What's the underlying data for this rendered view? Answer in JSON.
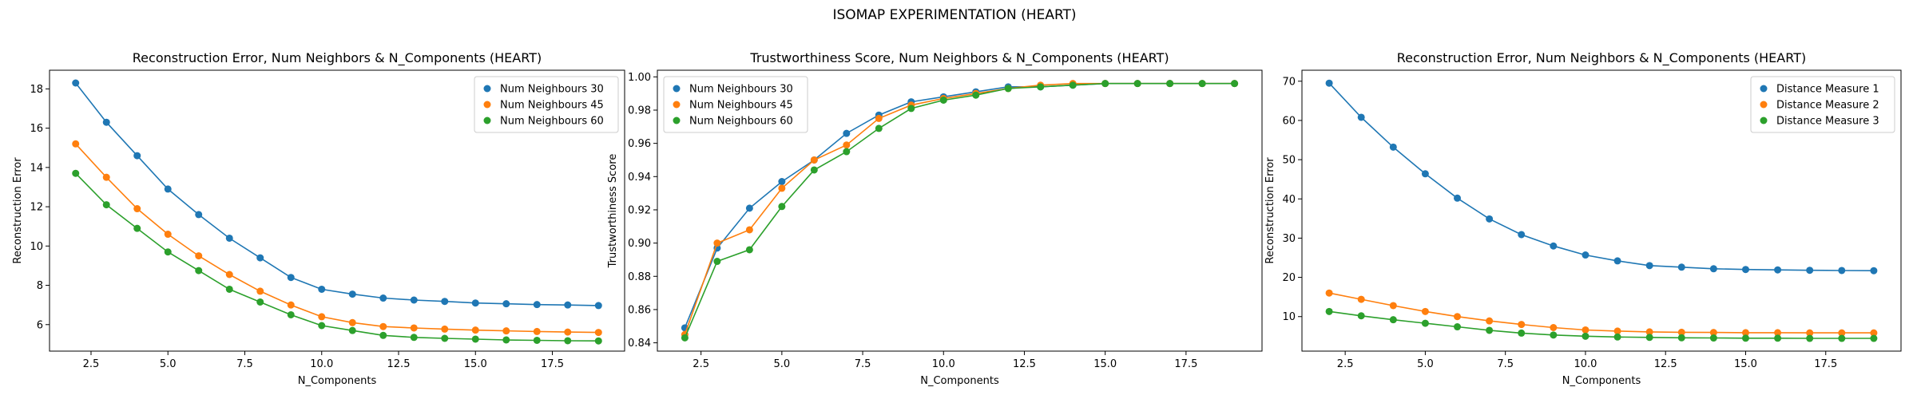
{
  "suptitle": "ISOMAP EXPERIMENTATION (HEART)",
  "colors": {
    "series_1": "#1f77b4",
    "series_2": "#ff7f0e",
    "series_3": "#2ca02c"
  },
  "chart_data": [
    {
      "type": "line",
      "title": "Reconstruction Error, Num Neighbors & N_Components (HEART)",
      "xlabel": "N_Components",
      "ylabel": "Reconstruction Error",
      "x": [
        2,
        3,
        4,
        5,
        6,
        7,
        8,
        9,
        10,
        11,
        12,
        13,
        14,
        15,
        16,
        17,
        18,
        19
      ],
      "xlim": [
        1.15,
        19.85
      ],
      "ylim": [
        4.65,
        18.95
      ],
      "xticks": [
        "2.5",
        "5.0",
        "7.5",
        "10.0",
        "12.5",
        "15.0",
        "17.5"
      ],
      "yticks": [
        "6",
        "8",
        "10",
        "12",
        "14",
        "16",
        "18"
      ],
      "grid": false,
      "legend_position": "upper right",
      "series": [
        {
          "name": "Num Neighbours 30",
          "values": [
            18.3,
            16.3,
            14.6,
            12.9,
            11.6,
            10.4,
            9.4,
            8.4,
            7.8,
            7.55,
            7.35,
            7.25,
            7.18,
            7.1,
            7.06,
            7.02,
            7.0,
            6.97
          ]
        },
        {
          "name": "Num Neighbours 45",
          "values": [
            15.2,
            13.5,
            11.9,
            10.6,
            9.5,
            8.55,
            7.7,
            7.0,
            6.4,
            6.1,
            5.9,
            5.83,
            5.77,
            5.72,
            5.68,
            5.65,
            5.62,
            5.6
          ]
        },
        {
          "name": "Num Neighbours 60",
          "values": [
            13.7,
            12.1,
            10.9,
            9.7,
            8.75,
            7.8,
            7.15,
            6.5,
            5.95,
            5.7,
            5.45,
            5.35,
            5.3,
            5.26,
            5.22,
            5.2,
            5.18,
            5.17
          ]
        }
      ]
    },
    {
      "type": "line",
      "title": "Trustworthiness Score, Num Neighbors & N_Components (HEART)",
      "xlabel": "N_Components",
      "ylabel": "Trustworthiness Score",
      "x": [
        2,
        3,
        4,
        5,
        6,
        7,
        8,
        9,
        10,
        11,
        12,
        13,
        14,
        15,
        16,
        17,
        18,
        19
      ],
      "xlim": [
        1.15,
        19.85
      ],
      "ylim": [
        0.835,
        1.004
      ],
      "xticks": [
        "2.5",
        "5.0",
        "7.5",
        "10.0",
        "12.5",
        "15.0",
        "17.5"
      ],
      "yticks": [
        "0.84",
        "0.86",
        "0.88",
        "0.90",
        "0.92",
        "0.94",
        "0.96",
        "0.98",
        "1.00"
      ],
      "grid": false,
      "legend_position": "upper left",
      "series": [
        {
          "name": "Num Neighbours 30",
          "values": [
            0.849,
            0.897,
            0.921,
            0.937,
            0.95,
            0.966,
            0.977,
            0.985,
            0.988,
            0.991,
            0.994,
            0.994,
            0.995,
            0.996,
            0.996,
            0.996,
            0.996,
            0.996
          ]
        },
        {
          "name": "Num Neighbours 45",
          "values": [
            0.845,
            0.9,
            0.908,
            0.933,
            0.95,
            0.959,
            0.975,
            0.983,
            0.987,
            0.99,
            0.993,
            0.995,
            0.996,
            0.996,
            0.996,
            0.996,
            0.996,
            0.996
          ]
        },
        {
          "name": "Num Neighbours 60",
          "values": [
            0.843,
            0.889,
            0.896,
            0.922,
            0.944,
            0.955,
            0.969,
            0.981,
            0.986,
            0.989,
            0.993,
            0.994,
            0.995,
            0.996,
            0.996,
            0.996,
            0.996,
            0.996
          ]
        }
      ]
    },
    {
      "type": "line",
      "title": "Reconstruction Error, Num Neighbors & N_Components (HEART)",
      "xlabel": "N_Components",
      "ylabel": "Reconstruction Error",
      "x": [
        2,
        3,
        4,
        5,
        6,
        7,
        8,
        9,
        10,
        11,
        12,
        13,
        14,
        15,
        16,
        17,
        18,
        19
      ],
      "xlim": [
        1.15,
        19.85
      ],
      "ylim": [
        1.2,
        72.8
      ],
      "xticks": [
        "2.5",
        "5.0",
        "7.5",
        "10.0",
        "12.5",
        "15.0",
        "17.5"
      ],
      "yticks": [
        "10",
        "20",
        "30",
        "40",
        "50",
        "60",
        "70"
      ],
      "grid": false,
      "legend_position": "upper right",
      "series": [
        {
          "name": "Distance Measure 1",
          "values": [
            69.5,
            60.8,
            53.2,
            46.4,
            40.2,
            34.9,
            30.9,
            28.0,
            25.7,
            24.2,
            23.0,
            22.6,
            22.2,
            22.0,
            21.9,
            21.8,
            21.75,
            21.7
          ]
        },
        {
          "name": "Distance Measure 2",
          "values": [
            16.0,
            14.4,
            12.8,
            11.3,
            10.0,
            8.9,
            8.0,
            7.2,
            6.6,
            6.3,
            6.1,
            6.0,
            5.95,
            5.9,
            5.9,
            5.85,
            5.85,
            5.85
          ]
        },
        {
          "name": "Distance Measure 3",
          "values": [
            11.3,
            10.2,
            9.2,
            8.3,
            7.4,
            6.5,
            5.8,
            5.3,
            5.0,
            4.8,
            4.7,
            4.6,
            4.55,
            4.5,
            4.5,
            4.45,
            4.45,
            4.45
          ]
        }
      ]
    }
  ]
}
